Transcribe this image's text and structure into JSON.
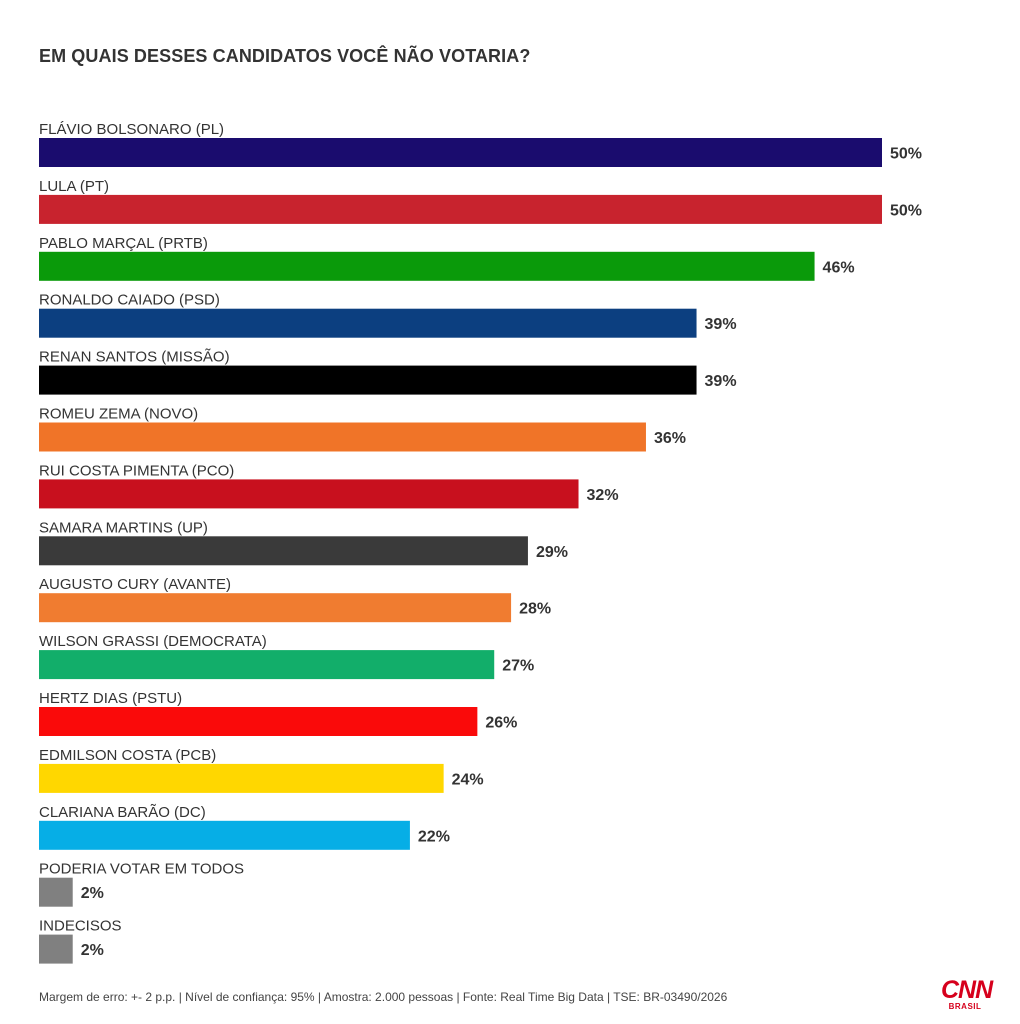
{
  "chart_data": {
    "type": "bar",
    "orientation": "horizontal",
    "title": "EM QUAIS DESSES CANDIDATOS VOCÊ NÃO VOTARIA?",
    "categories": [
      "FLÁVIO BOLSONARO (PL)",
      "LULA (PT)",
      "PABLO MARÇAL (PRTB)",
      "RONALDO CAIADO (PSD)",
      "RENAN SANTOS (MISSÃO)",
      "ROMEU ZEMA (NOVO)",
      "RUI COSTA PIMENTA (PCO)",
      "SAMARA MARTINS (UP)",
      "AUGUSTO CURY (AVANTE)",
      "WILSON GRASSI (DEMOCRATA)",
      "HERTZ DIAS (PSTU)",
      "EDMILSON COSTA (PCB)",
      "CLARIANA BARÃO (DC)",
      "PODERIA VOTAR EM TODOS",
      "INDECISOS"
    ],
    "values": [
      50,
      50,
      46,
      39,
      39,
      36,
      32,
      29,
      28,
      27,
      26,
      24,
      22,
      2,
      2
    ],
    "value_labels": [
      "50%",
      "50%",
      "46%",
      "39%",
      "39%",
      "36%",
      "32%",
      "29%",
      "28%",
      "27%",
      "26%",
      "24%",
      "22%",
      "2%",
      "2%"
    ],
    "colors": [
      "#1a0c6e",
      "#c8232e",
      "#0a9a0a",
      "#0c3f80",
      "#000000",
      "#f07428",
      "#c8101e",
      "#3a3a3a",
      "#f07c30",
      "#12ae6a",
      "#fa0a0a",
      "#ffd700",
      "#06aee6",
      "#808080",
      "#808080"
    ],
    "xlim": [
      0,
      50
    ],
    "grid": false,
    "legend": "none"
  },
  "footer": {
    "note": "Margem de erro: +- 2 p.p. | Nível de confiança: 95% | Amostra: 2.000 pessoas | Fonte: Real Time Big Data | TSE: BR-03490/2026"
  },
  "logo": {
    "name": "cnn-brasil-logo",
    "main": "CNN",
    "sub": "BRASIL",
    "color": "#d6001c"
  }
}
